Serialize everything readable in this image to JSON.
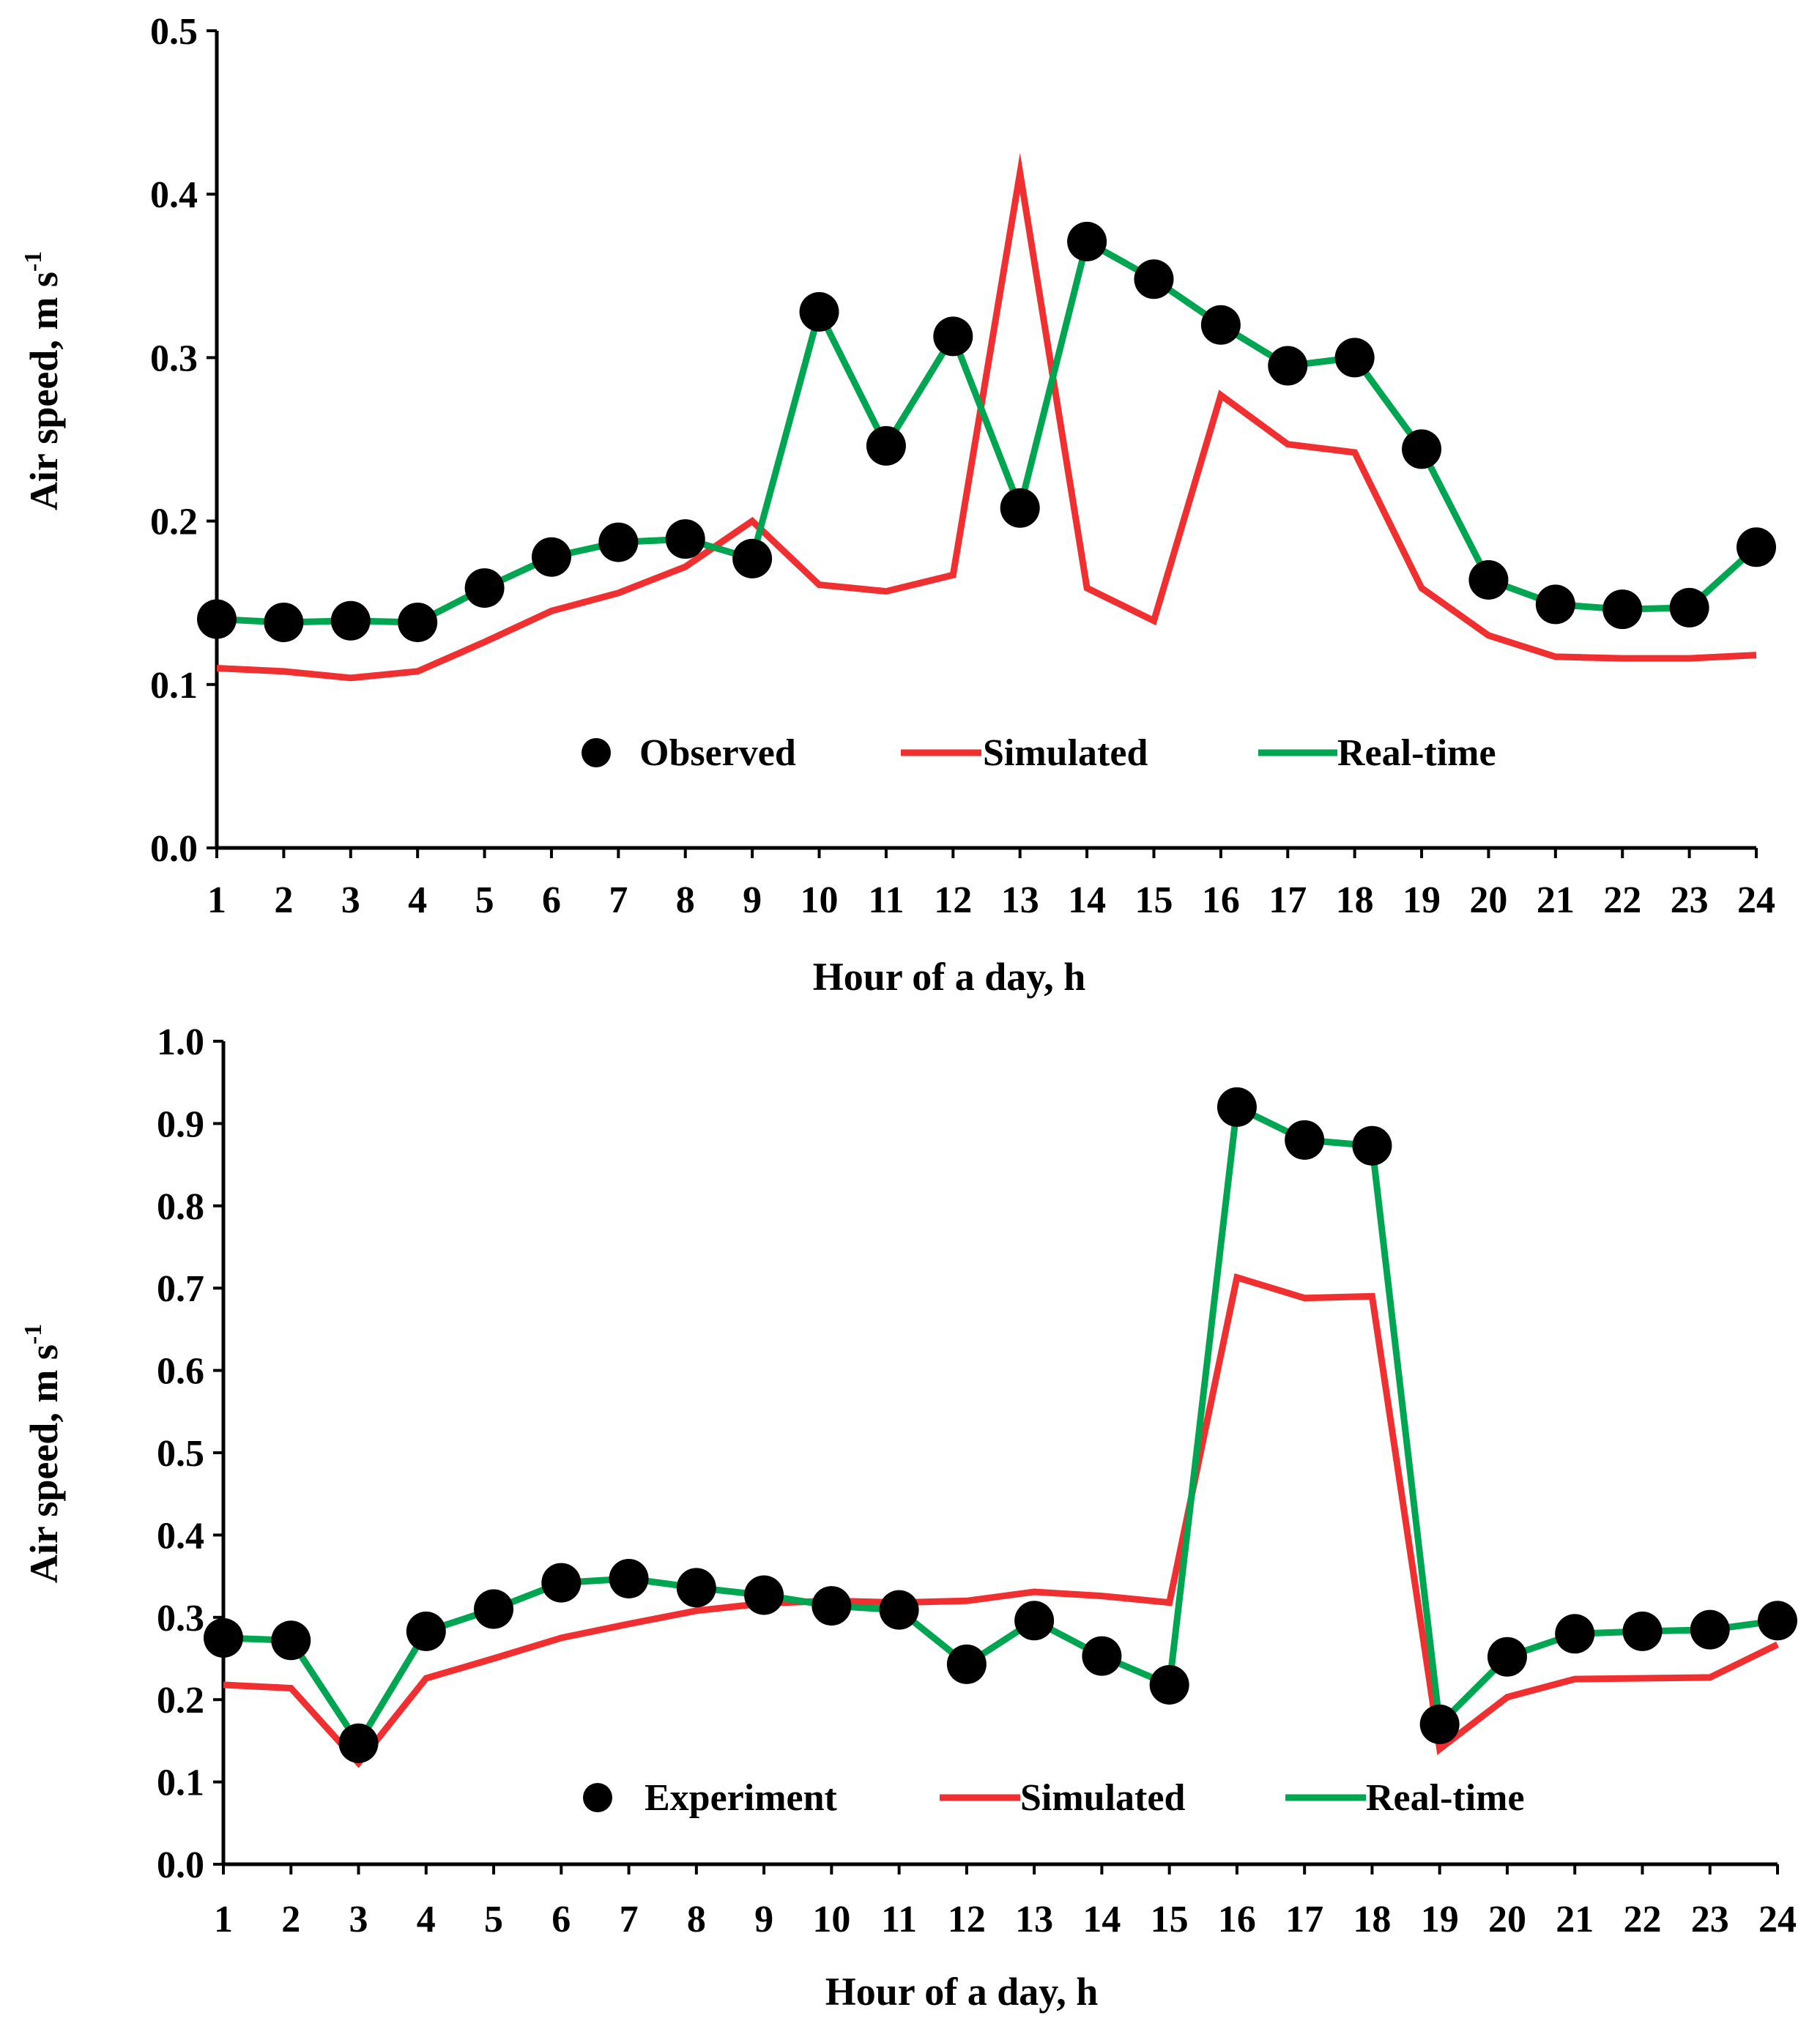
{
  "chart_data": [
    {
      "type": "line",
      "title": "",
      "xlabel": "Hour of a day, h",
      "ylabel": "Air speed,  m s",
      "ylabel_superscript": "-1",
      "x": [
        1,
        2,
        3,
        4,
        5,
        6,
        7,
        8,
        9,
        10,
        11,
        12,
        13,
        14,
        15,
        16,
        17,
        18,
        19,
        20,
        21,
        22,
        23,
        24
      ],
      "xticks": [
        "1",
        "2",
        "3",
        "4",
        "5",
        "6",
        "7",
        "8",
        "9",
        "10",
        "11",
        "12",
        "13",
        "14",
        "15",
        "16",
        "17",
        "18",
        "19",
        "20",
        "21",
        "22",
        "23",
        "24"
      ],
      "ylim": [
        0,
        0.5
      ],
      "yticks": [
        "0.0",
        "0.1",
        "0.2",
        "0.3",
        "0.4",
        "0.5"
      ],
      "legend_position": "bottom-center",
      "series": [
        {
          "name": "Observed",
          "kind": "marker",
          "color": "#000000",
          "values": [
            0.14,
            0.138,
            0.139,
            0.138,
            0.159,
            0.178,
            0.187,
            0.189,
            0.177,
            0.328,
            0.246,
            0.313,
            0.208,
            0.371,
            0.348,
            0.32,
            0.295,
            0.3,
            0.244,
            0.164,
            0.149,
            0.146,
            0.147,
            0.184
          ]
        },
        {
          "name": "Simulated",
          "kind": "line",
          "color": "#f03030",
          "values": [
            0.11,
            0.108,
            0.104,
            0.108,
            0.126,
            0.145,
            0.156,
            0.172,
            0.2,
            0.161,
            0.157,
            0.167,
            0.413,
            0.159,
            0.139,
            0.277,
            0.247,
            0.242,
            0.159,
            0.13,
            0.117,
            0.116,
            0.116,
            0.118
          ]
        },
        {
          "name": "Real-time",
          "kind": "line",
          "color": "#00a551",
          "values": [
            0.14,
            0.138,
            0.139,
            0.138,
            0.159,
            0.178,
            0.187,
            0.189,
            0.177,
            0.328,
            0.246,
            0.313,
            0.208,
            0.371,
            0.348,
            0.32,
            0.295,
            0.3,
            0.244,
            0.164,
            0.149,
            0.146,
            0.147,
            0.184
          ]
        }
      ]
    },
    {
      "type": "line",
      "title": "",
      "xlabel": "Hour of a day, h",
      "ylabel": "Air speed,  m s",
      "ylabel_superscript": "-1",
      "x": [
        1,
        2,
        3,
        4,
        5,
        6,
        7,
        8,
        9,
        10,
        11,
        12,
        13,
        14,
        15,
        16,
        17,
        18,
        19,
        20,
        21,
        22,
        23,
        24
      ],
      "xticks": [
        "1",
        "2",
        "3",
        "4",
        "5",
        "6",
        "7",
        "8",
        "9",
        "10",
        "11",
        "12",
        "13",
        "14",
        "15",
        "16",
        "17",
        "18",
        "19",
        "20",
        "21",
        "22",
        "23",
        "24"
      ],
      "ylim": [
        0,
        1.0
      ],
      "yticks": [
        "0.0",
        "0.1",
        "0.2",
        "0.3",
        "0.4",
        "0.5",
        "0.6",
        "0.7",
        "0.8",
        "0.9",
        "1.0"
      ],
      "legend_position": "bottom-center",
      "series": [
        {
          "name": "Experiment",
          "kind": "marker",
          "color": "#000000",
          "values": [
            0.275,
            0.272,
            0.147,
            0.283,
            0.31,
            0.342,
            0.347,
            0.336,
            0.327,
            0.314,
            0.309,
            0.243,
            0.296,
            0.253,
            0.218,
            0.92,
            0.88,
            0.873,
            0.17,
            0.252,
            0.28,
            0.283,
            0.285,
            0.296
          ]
        },
        {
          "name": "Simulated",
          "kind": "line",
          "color": "#f03030",
          "values": [
            0.218,
            0.214,
            0.123,
            0.226,
            0.25,
            0.275,
            0.292,
            0.308,
            0.317,
            0.32,
            0.318,
            0.32,
            0.331,
            0.326,
            0.318,
            0.713,
            0.688,
            0.69,
            0.14,
            0.203,
            0.225,
            0.226,
            0.227,
            0.267
          ]
        },
        {
          "name": "Real-time",
          "kind": "line",
          "color": "#00a551",
          "values": [
            0.275,
            0.272,
            0.147,
            0.283,
            0.31,
            0.342,
            0.347,
            0.336,
            0.327,
            0.314,
            0.309,
            0.243,
            0.296,
            0.253,
            0.218,
            0.92,
            0.88,
            0.873,
            0.17,
            0.252,
            0.28,
            0.283,
            0.285,
            0.296
          ]
        }
      ]
    }
  ]
}
